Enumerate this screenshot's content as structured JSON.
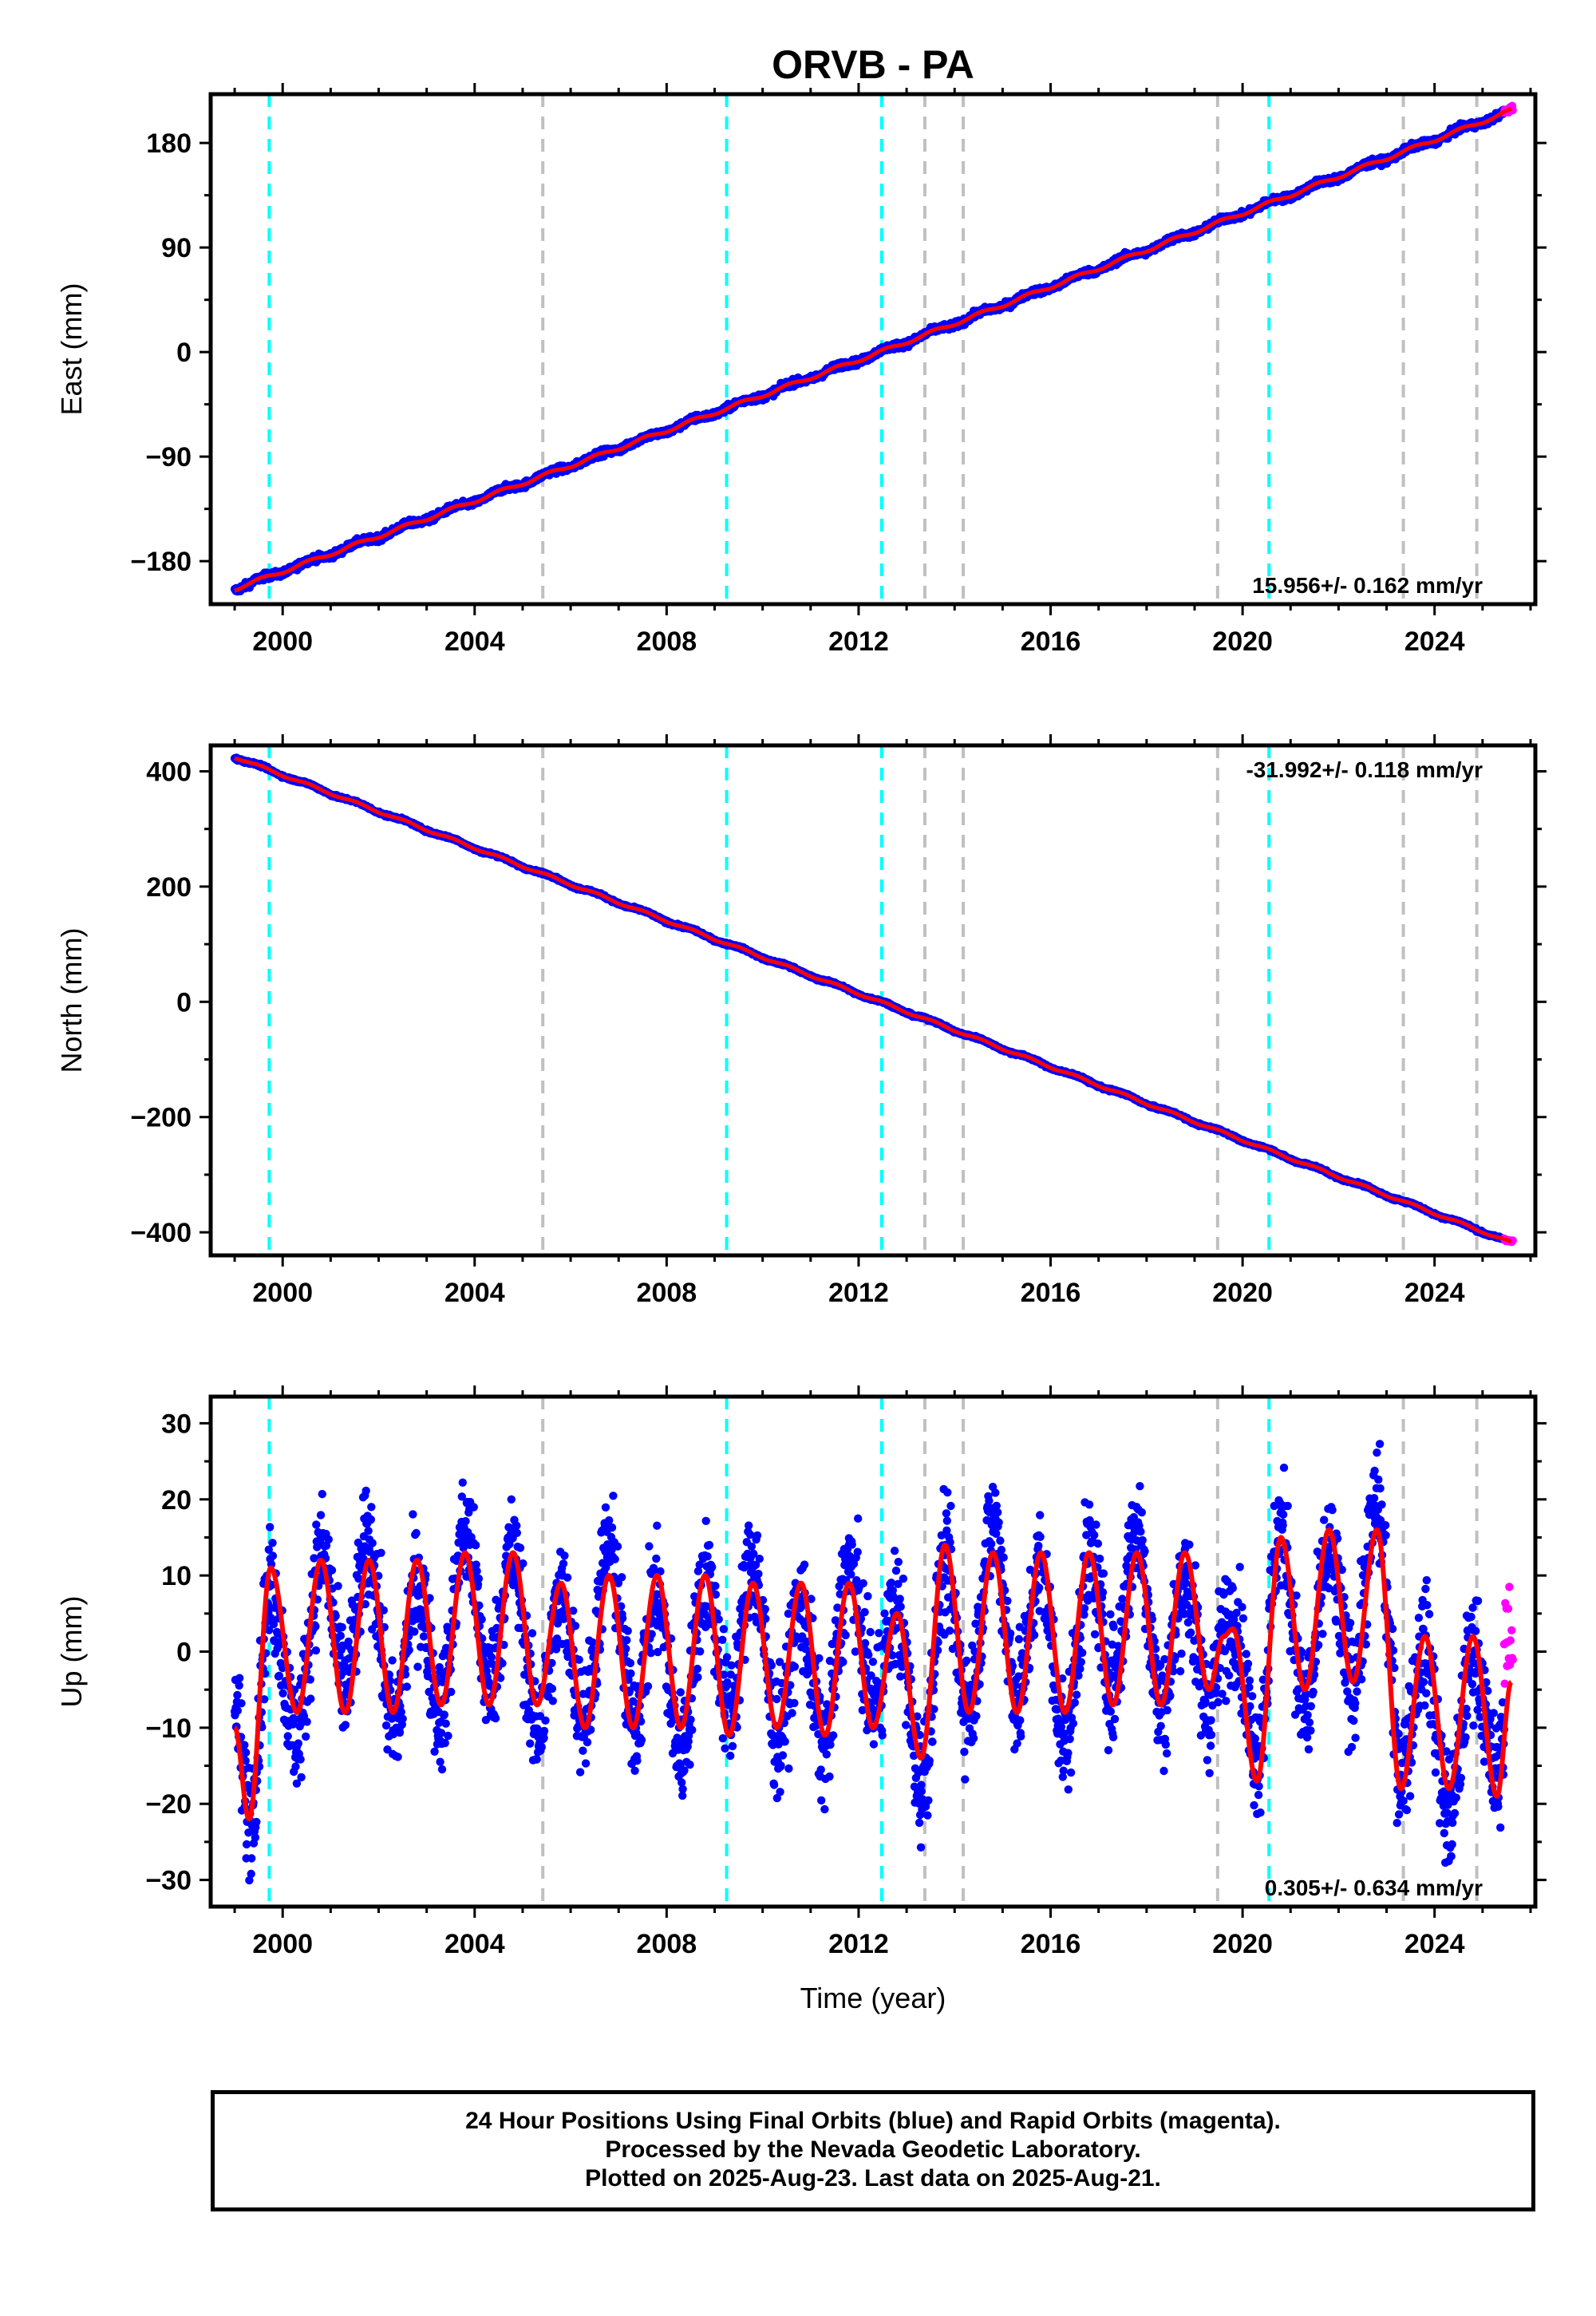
{
  "title": "ORVB - PA",
  "xlabel": "Time (year)",
  "footer": {
    "line1": "24 Hour Positions Using Final Orbits (blue) and Rapid Orbits (magenta).",
    "line2": "Processed by the Nevada Geodetic Laboratory.",
    "line3": "Plotted on 2025-Aug-23. Last data on 2025-Aug-21."
  },
  "colors": {
    "final": "#0000ff",
    "rapid": "#ff00ff",
    "model": "#ff0000",
    "equipment_change": "#00ffff",
    "event": "#c0c0c0"
  },
  "equipment_change_lines": [
    1999.72,
    2009.25,
    2012.48,
    2020.55
  ],
  "event_lines": [
    2005.42,
    2013.38,
    2014.18,
    2019.48,
    2023.35,
    2024.88
  ],
  "chart_data": [
    {
      "type": "scatter",
      "name": "east",
      "ylabel": "East (mm)",
      "xlim": [
        1998.5,
        2026.1
      ],
      "ylim": [
        -217,
        222
      ],
      "xticks": [
        2000,
        2004,
        2008,
        2012,
        2016,
        2020,
        2024
      ],
      "yticks": [
        -180,
        -90,
        0,
        90,
        180
      ],
      "ytick_labels": [
        "−180",
        "−90",
        "0",
        "90",
        "180"
      ],
      "rate_label": "15.956+/- 0.162 mm/yr",
      "rate_position": "bottom-right",
      "trend": {
        "x": [
          1999.0,
          2012.45,
          2025.6
        ],
        "y": [
          -204,
          0,
          208
        ]
      },
      "seasonal": {
        "amplitude": 1.5,
        "noise": 2.0
      },
      "series": [
        {
          "name": "final",
          "x_range": [
            1999.0,
            2025.45
          ]
        },
        {
          "name": "rapid",
          "x_range": [
            2025.45,
            2025.64
          ]
        }
      ]
    },
    {
      "type": "scatter",
      "name": "north",
      "ylabel": "North (mm)",
      "xlim": [
        1998.5,
        2026.1
      ],
      "ylim": [
        -440,
        445
      ],
      "xticks": [
        2000,
        2004,
        2008,
        2012,
        2016,
        2020,
        2024
      ],
      "yticks": [
        -400,
        -200,
        0,
        200,
        400
      ],
      "ytick_labels": [
        "−400",
        "−200",
        "0",
        "200",
        "400"
      ],
      "rate_label": "-31.992+/- 0.118 mm/yr",
      "rate_position": "top-right",
      "trend": {
        "x": [
          1999.0,
          2012.45,
          2025.6
        ],
        "y": [
          425,
          0,
          -418
        ]
      },
      "seasonal": {
        "amplitude": 2.0,
        "noise": 1.6
      },
      "series": [
        {
          "name": "final",
          "x_range": [
            1999.0,
            2025.45
          ]
        },
        {
          "name": "rapid",
          "x_range": [
            2025.45,
            2025.64
          ]
        }
      ]
    },
    {
      "type": "scatter",
      "name": "up",
      "ylabel": "Up (mm)",
      "xlim": [
        1998.5,
        2026.1
      ],
      "ylim": [
        -33.5,
        33.5
      ],
      "xticks": [
        2000,
        2004,
        2008,
        2012,
        2016,
        2020,
        2024
      ],
      "yticks": [
        -30,
        -20,
        -10,
        0,
        10,
        20,
        30
      ],
      "ytick_labels": [
        "−30",
        "−20",
        "−10",
        "0",
        "10",
        "20",
        "30"
      ],
      "rate_label": "0.305+/- 0.634 mm/yr",
      "rate_position": "bottom-right",
      "trend": {
        "x": [
          1999.0,
          2012.45,
          2025.6
        ],
        "y": [
          0,
          0,
          0
        ]
      },
      "seasonal_model": {
        "x": [
          1999.0,
          1999.3,
          1999.75,
          2000.3,
          2000.8,
          2001.3,
          2001.8,
          2002.3,
          2002.8,
          2003.3,
          2003.8,
          2004.3,
          2004.8,
          2005.3,
          2005.8,
          2006.3,
          2006.8,
          2007.3,
          2007.8,
          2008.3,
          2008.8,
          2009.3,
          2009.8,
          2010.3,
          2010.8,
          2011.3,
          2011.8,
          2012.3,
          2012.8,
          2013.3,
          2013.8,
          2014.3,
          2014.8,
          2015.3,
          2015.8,
          2016.3,
          2016.8,
          2017.3,
          2017.8,
          2018.3,
          2018.8,
          2019.3,
          2019.6,
          2019.8,
          2020.3,
          2020.8,
          2021.3,
          2021.8,
          2022.3,
          2022.8,
          2023.3,
          2023.8,
          2024.3,
          2024.8,
          2025.3,
          2025.6
        ],
        "y": [
          -10,
          -22,
          11,
          -8,
          12,
          -8,
          12,
          -8,
          12,
          -7,
          13,
          -7,
          13,
          -7,
          9,
          -10,
          10,
          -10,
          10,
          -10,
          10,
          -11,
          9,
          -10,
          9,
          -11,
          9,
          -10,
          5,
          -14,
          14,
          -8,
          13,
          -8,
          13,
          -8,
          13,
          -7,
          13,
          -7,
          13,
          -5,
          2,
          3,
          -17,
          15,
          -5,
          16,
          -4,
          16,
          -18,
          2,
          -18,
          2,
          -19,
          -4
        ]
      },
      "noise": 5.5,
      "series": [
        {
          "name": "final",
          "x_range": [
            1999.0,
            2025.45
          ]
        },
        {
          "name": "rapid",
          "x_range": [
            2025.45,
            2025.64
          ]
        }
      ]
    }
  ]
}
